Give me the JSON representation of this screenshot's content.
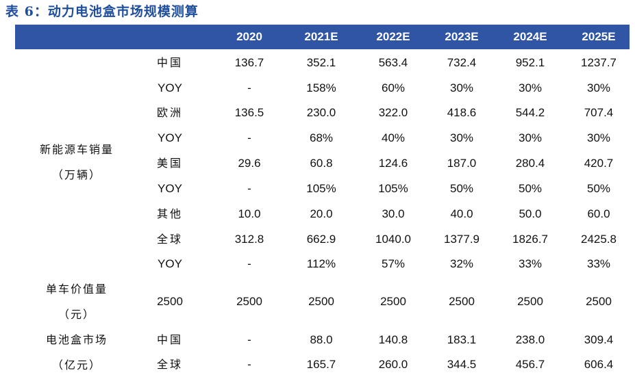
{
  "title": "表 6：动力电池盒市场规模测算",
  "columns": [
    "2020",
    "2021E",
    "2022E",
    "2023E",
    "2024E",
    "2025E"
  ],
  "groups": [
    {
      "line1": "新能源车销量",
      "line2": "（万辆）"
    },
    {
      "line1": "单车价值量",
      "line2": "（元）"
    },
    {
      "line1": "电池盒市场",
      "line2": "（亿元）"
    }
  ],
  "rows": [
    {
      "label": "中国",
      "values": [
        "136.7",
        "352.1",
        "563.4",
        "732.4",
        "952.1",
        "1237.7"
      ]
    },
    {
      "label": "YOY",
      "values": [
        "-",
        "158%",
        "60%",
        "30%",
        "30%",
        "30%"
      ]
    },
    {
      "label": "欧洲",
      "values": [
        "136.5",
        "230.0",
        "322.0",
        "418.6",
        "544.2",
        "707.4"
      ]
    },
    {
      "label": "YOY",
      "values": [
        "-",
        "68%",
        "40%",
        "30%",
        "30%",
        "30%"
      ]
    },
    {
      "label": "美国",
      "values": [
        "29.6",
        "60.8",
        "124.6",
        "187.0",
        "280.4",
        "420.7"
      ]
    },
    {
      "label": "YOY",
      "values": [
        "-",
        "105%",
        "105%",
        "50%",
        "50%",
        "50%"
      ]
    },
    {
      "label": "其他",
      "values": [
        "10.0",
        "20.0",
        "30.0",
        "40.0",
        "50.0",
        "60.0"
      ]
    },
    {
      "label": "全球",
      "values": [
        "312.8",
        "662.9",
        "1040.0",
        "1377.9",
        "1826.7",
        "2425.8"
      ]
    },
    {
      "label": "YOY",
      "values": [
        "-",
        "112%",
        "57%",
        "32%",
        "33%",
        "33%"
      ]
    },
    {
      "label": "2500",
      "values": [
        "2500",
        "2500",
        "2500",
        "2500",
        "2500",
        "2500"
      ]
    },
    {
      "label": "中国",
      "values": [
        "-",
        "88.0",
        "140.8",
        "183.1",
        "238.0",
        "309.4"
      ]
    },
    {
      "label": "全球",
      "values": [
        "-",
        "165.7",
        "260.0",
        "344.5",
        "456.7",
        "606.4"
      ]
    }
  ]
}
